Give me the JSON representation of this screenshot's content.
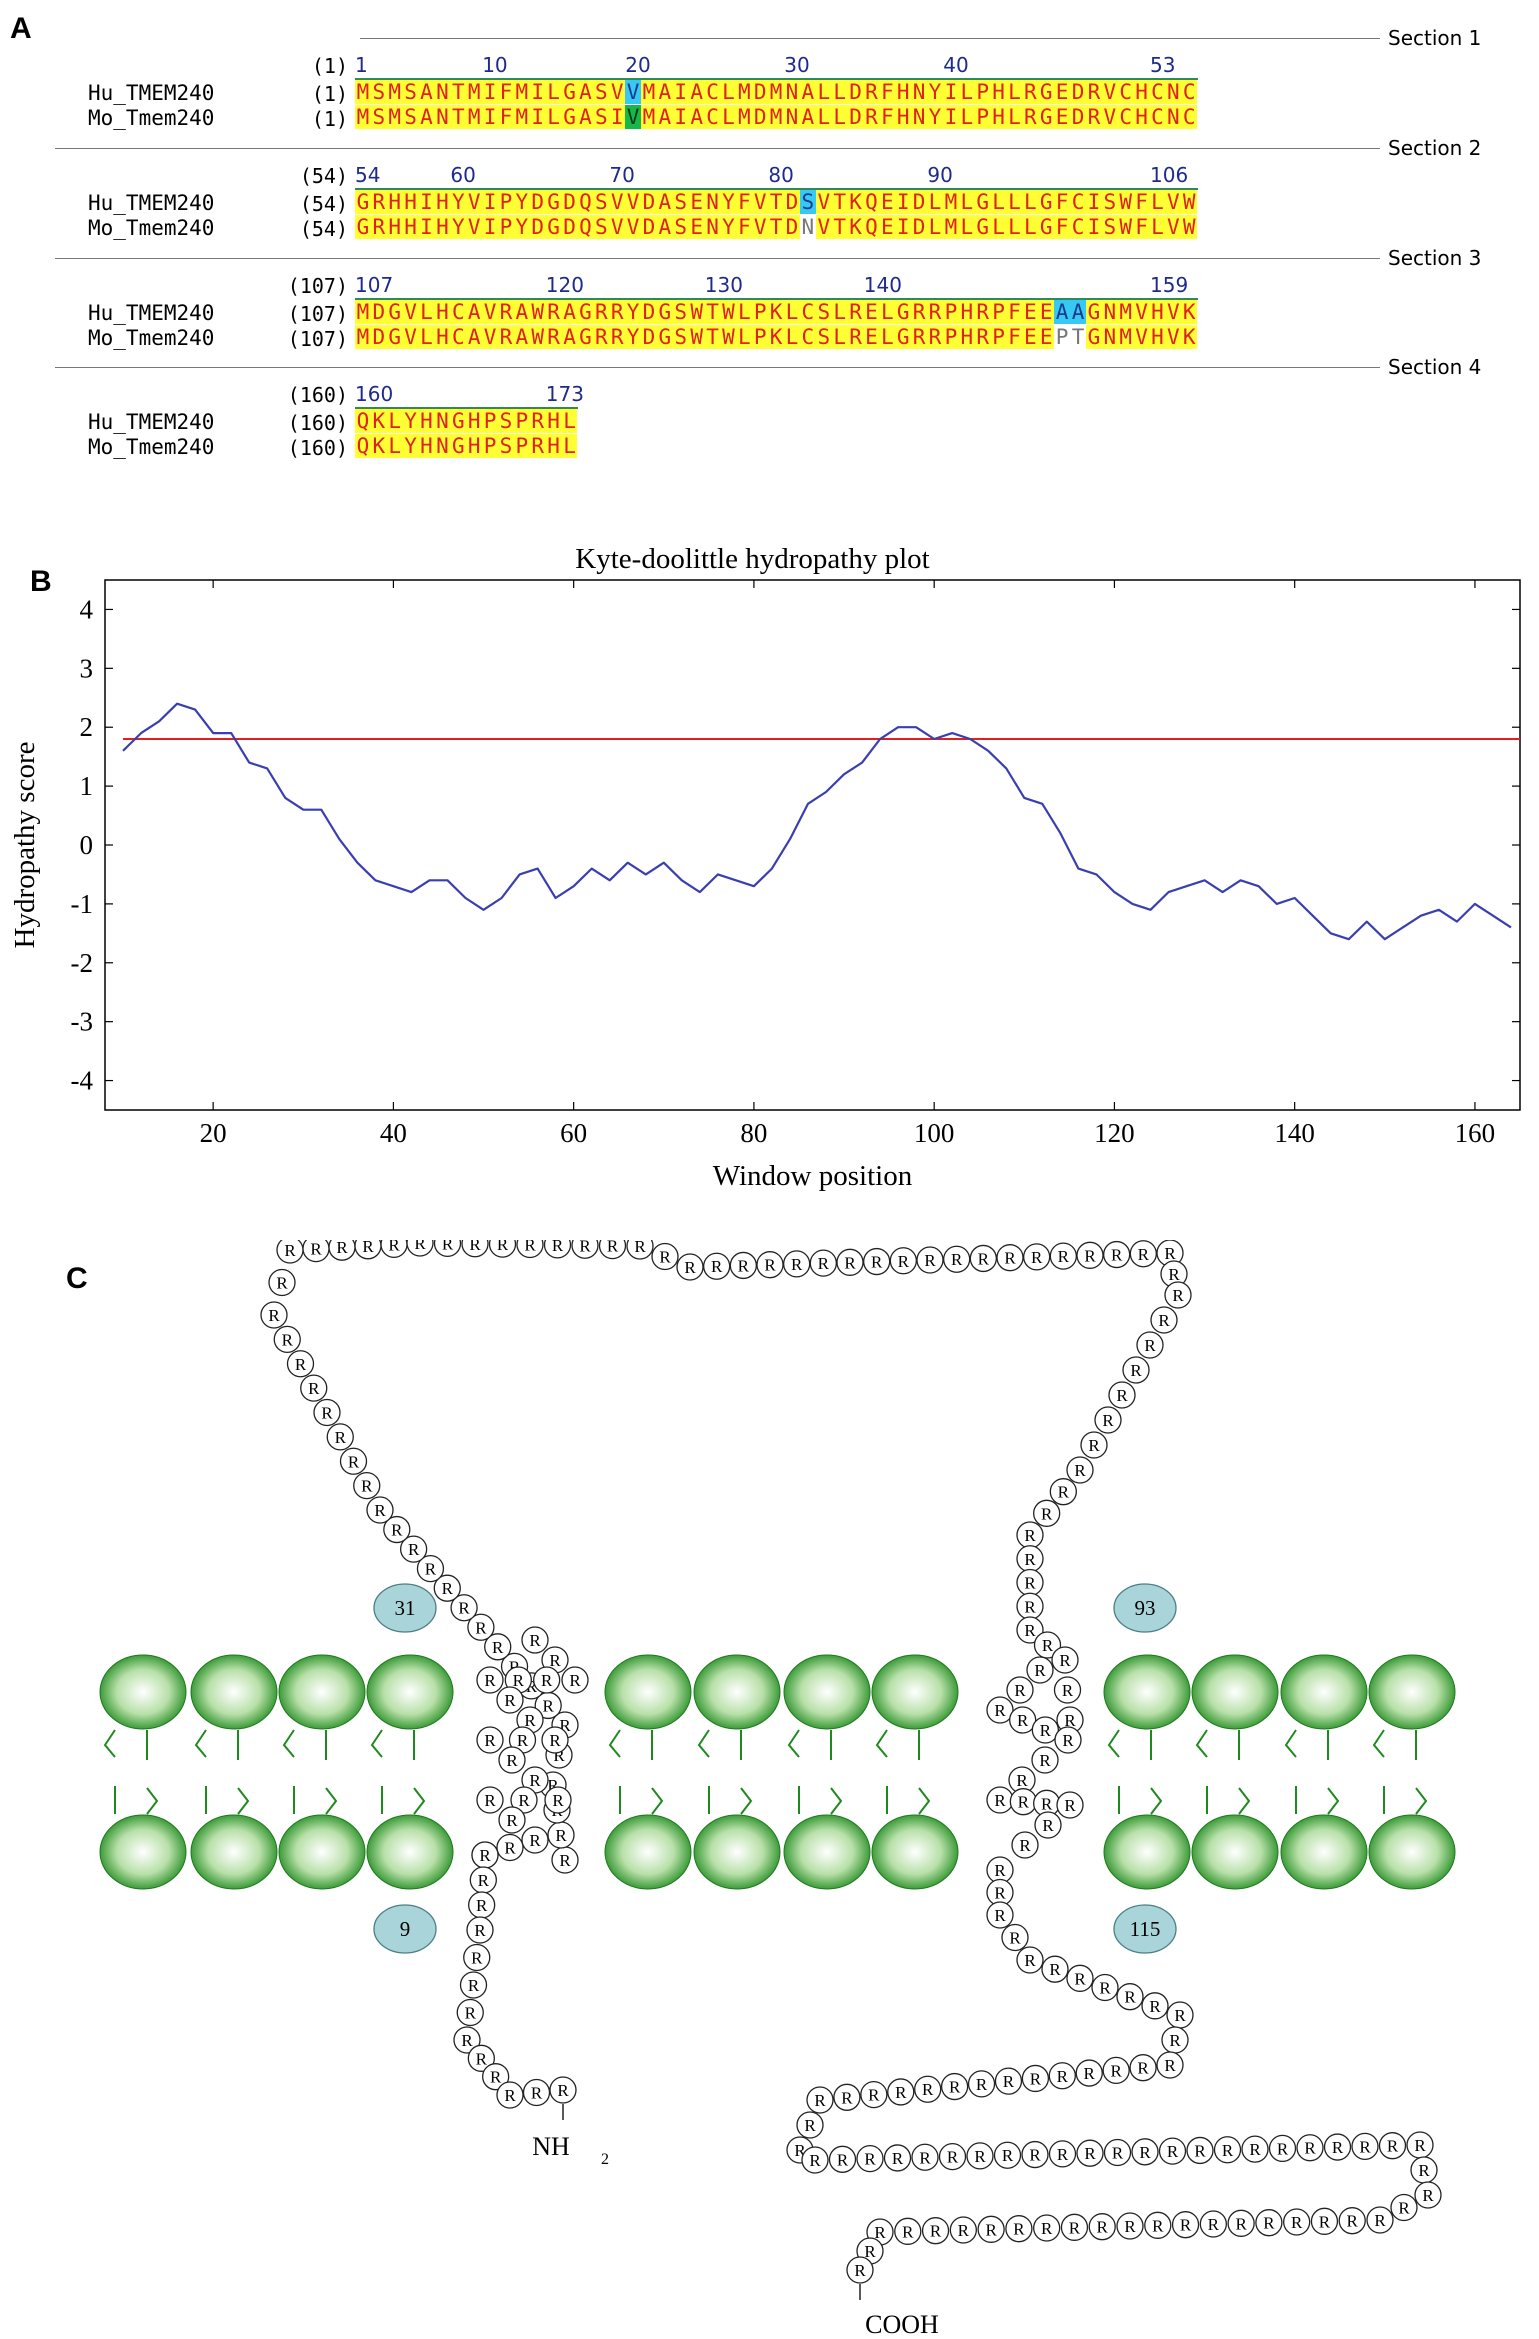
{
  "panels": {
    "a": "A",
    "b": "B",
    "c": "C"
  },
  "alignment": {
    "sections": [
      {
        "label": "Section 1",
        "range_label": "(1)",
        "ruler": [
          {
            "text": "1",
            "col": 0
          },
          {
            "text": "10",
            "col": 8
          },
          {
            "text": "20",
            "col": 17
          },
          {
            "text": "30",
            "col": 27
          },
          {
            "text": "40",
            "col": 37
          },
          {
            "text": "53",
            "col": 50
          }
        ],
        "rows": [
          {
            "name": "Hu_TMEM240",
            "pos": "(1)",
            "seq": "MSMSANTMIFMILGASVVMAIACLMDMNALLDRFHNYILPHLRGEDRVCHCNC",
            "marks": [
              {
                "i": 17,
                "c": "c-cyan"
              }
            ]
          },
          {
            "name": "Mo_Tmem240",
            "pos": "(1)",
            "seq": "MSMSANTMIFMILGASIVMAIACLMDMNALLDRFHNYILPHLRGEDRVCHCNC",
            "marks": [
              {
                "i": 17,
                "c": "c-green"
              }
            ]
          }
        ]
      },
      {
        "label": "Section 2",
        "range_label": "(54)",
        "ruler": [
          {
            "text": "54",
            "col": 0
          },
          {
            "text": "60",
            "col": 6
          },
          {
            "text": "70",
            "col": 16
          },
          {
            "text": "80",
            "col": 26
          },
          {
            "text": "90",
            "col": 36
          },
          {
            "text": "106",
            "col": 50
          }
        ],
        "rows": [
          {
            "name": "Hu_TMEM240",
            "pos": "(54)",
            "seq": "GRHHIHYVIPYDGDQSVVDASENYFVTDSVTKQEIDLMLGLLLGFCISWFLVW",
            "marks": [
              {
                "i": 28,
                "c": "c-cyan"
              }
            ]
          },
          {
            "name": "Mo_Tmem240",
            "pos": "(54)",
            "seq": "GRHHIHYVIPYDGDQSVVDASENYFVTDNVTKQEIDLMLGLLLGFCISWFLVW",
            "marks": [
              {
                "i": 28,
                "c": "c-white"
              }
            ]
          }
        ]
      },
      {
        "label": "Section 3",
        "range_label": "(107)",
        "ruler": [
          {
            "text": "107",
            "col": 0
          },
          {
            "text": "120",
            "col": 12
          },
          {
            "text": "130",
            "col": 22
          },
          {
            "text": "140",
            "col": 32
          },
          {
            "text": "159",
            "col": 50
          }
        ],
        "rows": [
          {
            "name": "Hu_TMEM240",
            "pos": "(107)",
            "seq": "MDGVLHCAVRAWRAGRRYDGSWTWLPKLCSLRELGRRPHRPFEEAAGNMVHVK",
            "marks": [
              {
                "i": 44,
                "c": "c-cyan"
              },
              {
                "i": 45,
                "c": "c-cyan"
              }
            ]
          },
          {
            "name": "Mo_Tmem240",
            "pos": "(107)",
            "seq": "MDGVLHCAVRAWRAGRRYDGSWTWLPKLCSLRELGRRPHRPFEEPTGNMVHVK",
            "marks": [
              {
                "i": 44,
                "c": "c-white"
              },
              {
                "i": 45,
                "c": "c-white"
              }
            ]
          }
        ]
      },
      {
        "label": "Section 4",
        "range_label": "(160)",
        "ruler": [
          {
            "text": "160",
            "col": 0
          },
          {
            "text": "173",
            "col": 12
          }
        ],
        "rows": [
          {
            "name": "Hu_TMEM240",
            "pos": "(160)",
            "seq": "QKLYHNGHPSPRHL",
            "marks": []
          },
          {
            "name": "Mo_Tmem240",
            "pos": "(160)",
            "seq": "QKLYHNGHPSPRHL",
            "marks": []
          }
        ]
      }
    ]
  },
  "chart_data": {
    "type": "line",
    "title": "Kyte-doolittle hydropathy plot",
    "xlabel": "Window position",
    "ylabel": "Hydropathy score",
    "xlim": [
      8,
      165
    ],
    "ylim": [
      -4.5,
      4.5
    ],
    "xticks": [
      20,
      40,
      60,
      80,
      100,
      120,
      140,
      160
    ],
    "yticks": [
      4,
      3,
      2,
      1,
      0,
      -1,
      -2,
      -3,
      -4
    ],
    "threshold": 1.8,
    "colors": {
      "series": "#3a3fb0",
      "threshold": "#e02020"
    },
    "series": [
      {
        "x": [
          10,
          12,
          14,
          16,
          18,
          20,
          22,
          24,
          26,
          28,
          30,
          32,
          34,
          36,
          38,
          40,
          42,
          44,
          46,
          48,
          50,
          52,
          54,
          56,
          58,
          60,
          62,
          64,
          66,
          68,
          70,
          72,
          74,
          76,
          78,
          80,
          82,
          84,
          86,
          88,
          90,
          92,
          94,
          96,
          98,
          100,
          102,
          104,
          106,
          108,
          110,
          112,
          114,
          116,
          118,
          120,
          122,
          124,
          126,
          128,
          130,
          132,
          134,
          136,
          138,
          140,
          142,
          144,
          146,
          148,
          150,
          152,
          154,
          156,
          158,
          160,
          162,
          164
        ],
        "values": [
          1.6,
          1.9,
          2.1,
          2.4,
          2.3,
          1.9,
          1.9,
          1.4,
          1.3,
          0.8,
          0.6,
          0.6,
          0.1,
          -0.3,
          -0.6,
          -0.7,
          -0.8,
          -0.6,
          -0.6,
          -0.9,
          -1.1,
          -0.9,
          -0.5,
          -0.4,
          -0.9,
          -0.7,
          -0.4,
          -0.6,
          -0.3,
          -0.5,
          -0.3,
          -0.6,
          -0.8,
          -0.5,
          -0.6,
          -0.7,
          -0.4,
          0.1,
          0.7,
          0.9,
          1.2,
          1.4,
          1.8,
          2.0,
          2.0,
          1.8,
          1.9,
          1.8,
          1.6,
          1.3,
          0.8,
          0.7,
          0.2,
          -0.4,
          -0.5,
          -0.8,
          -1.0,
          -1.1,
          -0.8,
          -0.7,
          -0.6,
          -0.8,
          -0.6,
          -0.7,
          -1.0,
          -0.9,
          -1.2,
          -1.5,
          -1.6,
          -1.3,
          -1.6,
          -1.4,
          -1.2,
          -1.1,
          -1.3,
          -1.0,
          -1.2,
          -1.4
        ]
      }
    ]
  },
  "topology": {
    "residue": "R",
    "labels": {
      "n_term": "NH",
      "n_term_sub": "2",
      "c_term": "COOH"
    },
    "markers": [
      "31",
      "93",
      "9",
      "115"
    ],
    "colors": {
      "lipid": "#1e8a1e",
      "marker": "#a9d4d9"
    }
  }
}
